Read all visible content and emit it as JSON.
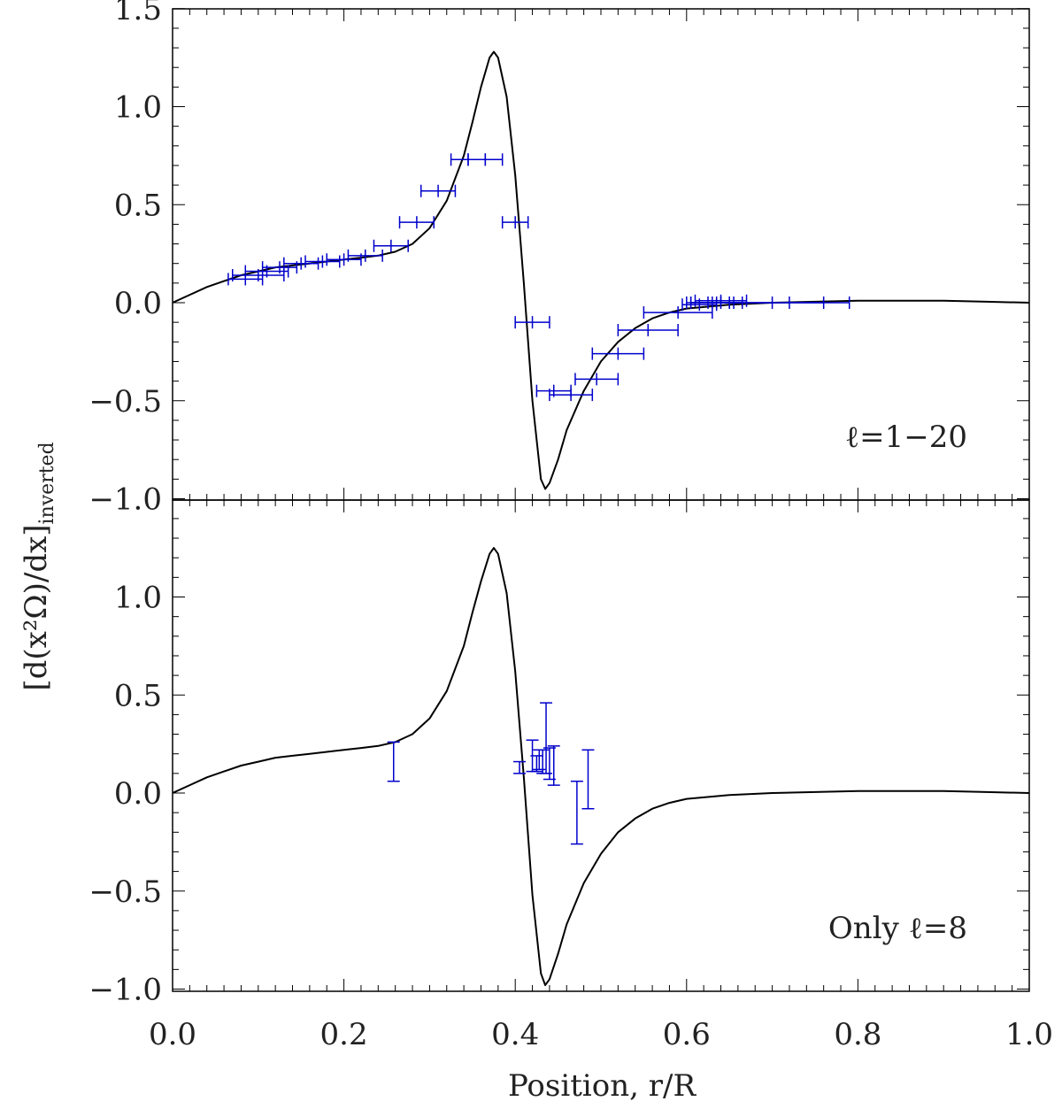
{
  "chart_data": [
    {
      "type": "line",
      "annotation": "ℓ=1−20",
      "xlim": [
        0.0,
        1.0
      ],
      "ylim": [
        -1.1,
        1.5
      ],
      "y_ticks": [
        -1.0,
        -0.5,
        0.0,
        0.5,
        1.0,
        1.5
      ],
      "y_tick_labels": [
        "−1.0",
        "−0.5",
        "0.0",
        "0.5",
        "1.0",
        "1.5"
      ],
      "series": [
        {
          "kind": "model-curve",
          "color": "#000000",
          "x": [
            0.0,
            0.02,
            0.04,
            0.06,
            0.08,
            0.1,
            0.12,
            0.14,
            0.16,
            0.18,
            0.2,
            0.22,
            0.24,
            0.26,
            0.28,
            0.3,
            0.32,
            0.34,
            0.35,
            0.36,
            0.37,
            0.375,
            0.38,
            0.39,
            0.4,
            0.41,
            0.42,
            0.43,
            0.435,
            0.44,
            0.45,
            0.46,
            0.48,
            0.5,
            0.52,
            0.54,
            0.56,
            0.58,
            0.6,
            0.65,
            0.7,
            0.75,
            0.8,
            0.85,
            0.9,
            0.95,
            1.0
          ],
          "y": [
            0.0,
            0.04,
            0.08,
            0.11,
            0.14,
            0.16,
            0.18,
            0.19,
            0.2,
            0.21,
            0.22,
            0.23,
            0.24,
            0.26,
            0.3,
            0.38,
            0.52,
            0.75,
            0.92,
            1.1,
            1.25,
            1.28,
            1.25,
            1.05,
            0.65,
            0.1,
            -0.5,
            -0.9,
            -0.95,
            -0.92,
            -0.8,
            -0.65,
            -0.45,
            -0.3,
            -0.2,
            -0.13,
            -0.08,
            -0.05,
            -0.03,
            -0.01,
            0.0,
            0.005,
            0.01,
            0.01,
            0.01,
            0.005,
            0.0
          ]
        },
        {
          "kind": "inverted-points",
          "color": "#0000cc",
          "points": [
            {
              "x": 0.085,
              "y": 0.12,
              "xerr": 0.02
            },
            {
              "x": 0.1,
              "y": 0.14,
              "xerr": 0.03
            },
            {
              "x": 0.11,
              "y": 0.16,
              "xerr": 0.025
            },
            {
              "x": 0.125,
              "y": 0.18,
              "xerr": 0.02
            },
            {
              "x": 0.15,
              "y": 0.2,
              "xerr": 0.02
            },
            {
              "x": 0.175,
              "y": 0.21,
              "xerr": 0.02
            },
            {
              "x": 0.2,
              "y": 0.22,
              "xerr": 0.02
            },
            {
              "x": 0.225,
              "y": 0.24,
              "xerr": 0.02
            },
            {
              "x": 0.255,
              "y": 0.29,
              "xerr": 0.02
            },
            {
              "x": 0.285,
              "y": 0.41,
              "xerr": 0.02
            },
            {
              "x": 0.31,
              "y": 0.57,
              "xerr": 0.02
            },
            {
              "x": 0.345,
              "y": 0.73,
              "xerr": 0.02
            },
            {
              "x": 0.365,
              "y": 0.73,
              "xerr": 0.02
            },
            {
              "x": 0.4,
              "y": 0.41,
              "xerr": 0.015
            },
            {
              "x": 0.42,
              "y": -0.1,
              "xerr": 0.02
            },
            {
              "x": 0.445,
              "y": -0.45,
              "xerr": 0.02
            },
            {
              "x": 0.465,
              "y": -0.47,
              "xerr": 0.025
            },
            {
              "x": 0.495,
              "y": -0.39,
              "xerr": 0.025
            },
            {
              "x": 0.52,
              "y": -0.26,
              "xerr": 0.03
            },
            {
              "x": 0.555,
              "y": -0.14,
              "xerr": 0.035
            },
            {
              "x": 0.59,
              "y": -0.05,
              "xerr": 0.04
            },
            {
              "x": 0.615,
              "y": -0.01,
              "xerr": 0.02
            },
            {
              "x": 0.625,
              "y": 0.0,
              "xerr": 0.025
            },
            {
              "x": 0.63,
              "y": 0.0,
              "xerr": 0.025
            },
            {
              "x": 0.635,
              "y": 0.0,
              "xerr": 0.03
            },
            {
              "x": 0.64,
              "y": 0.01,
              "xerr": 0.03
            },
            {
              "x": 0.7,
              "y": 0.0,
              "xerr": 0.06
            },
            {
              "x": 0.72,
              "y": 0.0,
              "xerr": 0.07
            }
          ]
        }
      ]
    },
    {
      "type": "line",
      "annotation": "Only ℓ=8",
      "xlim": [
        0.0,
        1.0
      ],
      "ylim": [
        -1.1,
        1.5
      ],
      "y_ticks": [
        -1.0,
        -0.5,
        0.0,
        0.5,
        1.0
      ],
      "y_tick_labels": [
        "−1.0",
        "−0.5",
        "0.0",
        "0.5",
        "1.0"
      ],
      "x_ticks": [
        0.0,
        0.2,
        0.4,
        0.6,
        0.8,
        1.0
      ],
      "x_tick_labels": [
        "0.0",
        "0.2",
        "0.4",
        "0.6",
        "0.8",
        "1.0"
      ],
      "series": [
        {
          "kind": "model-curve",
          "color": "#000000",
          "x": [
            0.0,
            0.02,
            0.04,
            0.06,
            0.08,
            0.1,
            0.12,
            0.14,
            0.16,
            0.18,
            0.2,
            0.22,
            0.24,
            0.26,
            0.28,
            0.3,
            0.32,
            0.34,
            0.35,
            0.36,
            0.37,
            0.375,
            0.38,
            0.39,
            0.4,
            0.41,
            0.42,
            0.43,
            0.435,
            0.44,
            0.45,
            0.46,
            0.48,
            0.5,
            0.52,
            0.54,
            0.56,
            0.58,
            0.6,
            0.65,
            0.7,
            0.75,
            0.8,
            0.85,
            0.9,
            0.95,
            1.0
          ],
          "y": [
            0.0,
            0.04,
            0.08,
            0.11,
            0.14,
            0.16,
            0.18,
            0.19,
            0.2,
            0.21,
            0.22,
            0.23,
            0.24,
            0.26,
            0.3,
            0.38,
            0.52,
            0.75,
            0.92,
            1.08,
            1.22,
            1.25,
            1.22,
            1.02,
            0.62,
            0.08,
            -0.52,
            -0.92,
            -0.98,
            -0.95,
            -0.82,
            -0.67,
            -0.46,
            -0.31,
            -0.2,
            -0.13,
            -0.08,
            -0.05,
            -0.03,
            -0.01,
            0.0,
            0.005,
            0.01,
            0.01,
            0.01,
            0.005,
            0.0
          ]
        },
        {
          "kind": "inverted-points",
          "color": "#0000cc",
          "points": [
            {
              "x": 0.258,
              "y": 0.16,
              "yerr": 0.1
            },
            {
              "x": 0.405,
              "y": 0.13,
              "yerr": 0.03
            },
            {
              "x": 0.42,
              "y": 0.19,
              "yerr": 0.08
            },
            {
              "x": 0.425,
              "y": 0.15,
              "yerr": 0.04
            },
            {
              "x": 0.428,
              "y": 0.17,
              "yerr": 0.05
            },
            {
              "x": 0.432,
              "y": 0.16,
              "yerr": 0.06
            },
            {
              "x": 0.436,
              "y": 0.28,
              "yerr": 0.18
            },
            {
              "x": 0.44,
              "y": 0.15,
              "yerr": 0.08
            },
            {
              "x": 0.445,
              "y": 0.14,
              "yerr": 0.1
            },
            {
              "x": 0.472,
              "y": -0.1,
              "yerr": 0.16
            },
            {
              "x": 0.485,
              "y": 0.07,
              "yerr": 0.15
            }
          ]
        }
      ]
    }
  ],
  "axes": {
    "xlabel": "Position, r/R",
    "ylabel_main": "[d(x²Ω)/dx]",
    "ylabel_sub": "inverted"
  }
}
